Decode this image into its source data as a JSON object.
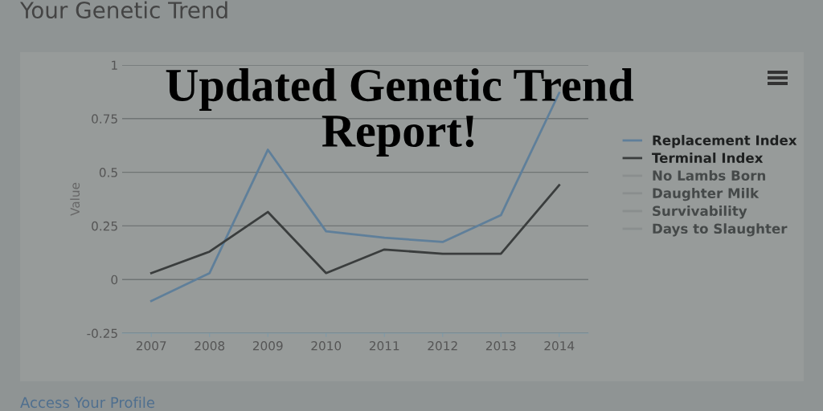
{
  "chart_data": {
    "type": "line",
    "title": "Your Genetic Trend",
    "ylabel": "Value",
    "annotations": [
      "Updated Genetic Trend\nReport!",
      "Access Your Profile"
    ],
    "categories": [
      "2007",
      "2008",
      "2009",
      "2010",
      "2011",
      "2012",
      "2013",
      "2014"
    ],
    "series": [
      {
        "name": "Replacement Index",
        "color": "#5f7f9a",
        "values": [
          -0.1,
          0.03,
          0.605,
          0.225,
          0.195,
          0.175,
          0.3,
          0.87
        ]
      },
      {
        "name": "Terminal Index",
        "color": "#3a3d3d",
        "values": [
          0.03,
          0.13,
          0.315,
          0.03,
          0.14,
          0.12,
          0.12,
          0.44
        ]
      },
      {
        "name": "No Lambs Born",
        "color": "#8a8e8e",
        "values": [
          null,
          null,
          null,
          null,
          null,
          null,
          null,
          null
        ]
      },
      {
        "name": "Daughter Milk",
        "color": "#8a8e8e",
        "values": [
          null,
          null,
          null,
          null,
          null,
          null,
          null,
          null
        ]
      },
      {
        "name": "Survivability",
        "color": "#8a8e8e",
        "values": [
          null,
          null,
          null,
          null,
          null,
          null,
          null,
          null
        ]
      },
      {
        "name": "Days to Slaughter",
        "color": "#8a8e8e",
        "values": [
          null,
          null,
          null,
          null,
          null,
          null,
          null,
          null
        ]
      }
    ],
    "ylim": [
      -0.25,
      1
    ],
    "yticks": [
      -0.25,
      0,
      0.25,
      0.5,
      0.75,
      1
    ],
    "grid": "y",
    "legend": "right",
    "marker": "none",
    "line_style": "solid"
  }
}
